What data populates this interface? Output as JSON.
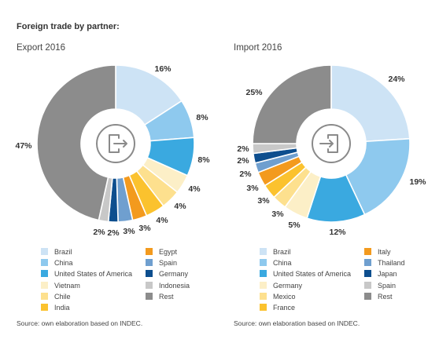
{
  "heading": "Foreign trade by partner:",
  "chart_data": [
    {
      "type": "pie",
      "title": "Export 2016",
      "source": "Source: own elaboration based on INDEC.",
      "slices": [
        {
          "name": "Brazil",
          "value": 16,
          "label": "16%",
          "color": "#cde3f5"
        },
        {
          "name": "China",
          "value": 8,
          "label": "8%",
          "color": "#8ec9ee"
        },
        {
          "name": "United States of America",
          "value": 8,
          "label": "8%",
          "color": "#3aa9e0"
        },
        {
          "name": "Vietnam",
          "value": 4,
          "label": "4%",
          "color": "#fcefc7"
        },
        {
          "name": "Chile",
          "value": 4,
          "label": "4%",
          "color": "#fde08e"
        },
        {
          "name": "India",
          "value": 4,
          "label": "4%",
          "color": "#fbc22e"
        },
        {
          "name": "Egypt",
          "value": 3,
          "label": "3%",
          "color": "#f39a1e"
        },
        {
          "name": "Spain",
          "value": 3,
          "label": "3%",
          "color": "#6f9fcf"
        },
        {
          "name": "Germany",
          "value": 2,
          "label": "2%",
          "color": "#0d4e8e"
        },
        {
          "name": "Indonesia",
          "value": 2,
          "label": "2%",
          "color": "#c8c8c8"
        },
        {
          "name": "Rest",
          "value": 47,
          "label": "47%",
          "color": "#8c8c8c"
        }
      ]
    },
    {
      "type": "pie",
      "title": "Import 2016",
      "source": "Source: own elaboration based on INDEC.",
      "slices": [
        {
          "name": "Brazil",
          "value": 24,
          "label": "24%",
          "color": "#cde3f5"
        },
        {
          "name": "China",
          "value": 19,
          "label": "19%",
          "color": "#8ec9ee"
        },
        {
          "name": "United States of America",
          "value": 12,
          "label": "12%",
          "color": "#3aa9e0"
        },
        {
          "name": "Germany",
          "value": 5,
          "label": "5%",
          "color": "#fcefc7"
        },
        {
          "name": "Mexico",
          "value": 3,
          "label": "3%",
          "color": "#fde08e"
        },
        {
          "name": "France",
          "value": 3,
          "label": "3%",
          "color": "#fbc22e"
        },
        {
          "name": "Italy",
          "value": 3,
          "label": "3%",
          "color": "#f39a1e"
        },
        {
          "name": "Thailand",
          "value": 2,
          "label": "2%",
          "color": "#6f9fcf"
        },
        {
          "name": "Japan",
          "value": 2,
          "label": "2%",
          "color": "#0d4e8e"
        },
        {
          "name": "Spain",
          "value": 2,
          "label": "2%",
          "color": "#c8c8c8"
        },
        {
          "name": "Rest",
          "value": 25,
          "label": "25%",
          "color": "#8c8c8c"
        }
      ]
    }
  ]
}
